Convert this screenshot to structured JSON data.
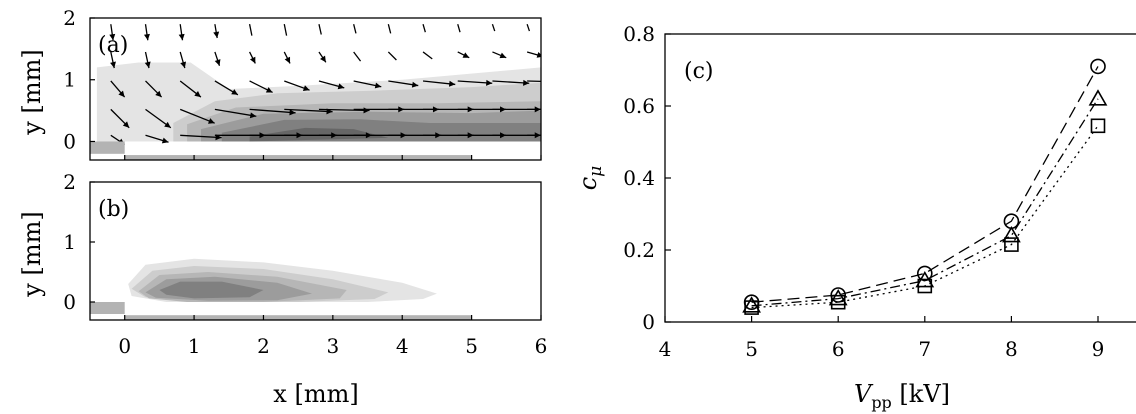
{
  "colors": {
    "contour_levels": [
      "#e4e4e4",
      "#cdcdcd",
      "#b6b6b6",
      "#9c9c9c",
      "#808080",
      "#666666"
    ],
    "electrode": "#b3b3b3",
    "background": "#ffffff"
  },
  "chart_data": [
    {
      "panel": "(a)",
      "type": "heatmap",
      "description_shape": "filled contour of induced flow with velocity vectors",
      "xlim": [
        -0.5,
        6
      ],
      "ylim": [
        -0.3,
        2
      ],
      "xticks": [
        "0",
        "1",
        "2",
        "3",
        "4",
        "5",
        "6"
      ],
      "yticks": [
        "0",
        "1",
        "2"
      ],
      "xticks_shown": false,
      "ylabel": "y [mm]",
      "electrodes": [
        {
          "x": [
            -0.5,
            0
          ],
          "y": [
            -0.2,
            0
          ]
        },
        {
          "x": [
            0,
            5
          ],
          "y": [
            -0.42,
            -0.22
          ]
        }
      ],
      "contours": [
        {
          "level": 1,
          "x": [
            -0.4,
            0.2,
            0.95,
            1.5,
            2.5,
            4,
            6,
            6,
            5,
            3,
            2,
            1.2,
            0.5,
            0,
            -0.4
          ],
          "y": [
            1.2,
            1.28,
            1.28,
            0.85,
            0.9,
            1.0,
            1.2,
            0,
            0,
            0,
            0,
            0,
            0,
            0,
            0
          ]
        },
        {
          "level": 2,
          "x": [
            0.7,
            1.3,
            2.2,
            3.5,
            5,
            6,
            6,
            0.7
          ],
          "y": [
            0.3,
            0.65,
            0.78,
            0.82,
            0.88,
            0.95,
            0,
            0
          ]
        },
        {
          "level": 3,
          "x": [
            0.9,
            1.6,
            3,
            4.5,
            6,
            6,
            0.9
          ],
          "y": [
            0.28,
            0.55,
            0.62,
            0.62,
            0.65,
            0,
            0
          ]
        },
        {
          "level": 4,
          "x": [
            1.1,
            2,
            3.5,
            5,
            6,
            6,
            1.1
          ],
          "y": [
            0.2,
            0.45,
            0.48,
            0.46,
            0.5,
            0,
            0
          ]
        },
        {
          "level": 5,
          "x": [
            1.4,
            2.3,
            3.4,
            4.4,
            6,
            6,
            1.4
          ],
          "y": [
            0.14,
            0.35,
            0.36,
            0.3,
            0.3,
            0,
            0
          ]
        },
        {
          "level": 6,
          "x": [
            1.8,
            2.6,
            3.3,
            3.8,
            1.8
          ],
          "y": [
            0.08,
            0.22,
            0.2,
            0.06,
            0
          ]
        }
      ],
      "vectors": [
        {
          "x": -0.2,
          "y": 1.9,
          "u": 0.02,
          "v": -0.14
        },
        {
          "x": 0.3,
          "y": 1.9,
          "u": 0.02,
          "v": -0.14
        },
        {
          "x": 0.8,
          "y": 1.9,
          "u": 0.02,
          "v": -0.14
        },
        {
          "x": 1.3,
          "y": 1.9,
          "u": 0.02,
          "v": -0.12
        },
        {
          "x": 1.8,
          "y": 1.9,
          "u": 0.02,
          "v": -0.1
        },
        {
          "x": 2.3,
          "y": 1.9,
          "u": 0.02,
          "v": -0.1
        },
        {
          "x": 2.8,
          "y": 1.9,
          "u": 0.02,
          "v": -0.09
        },
        {
          "x": 3.3,
          "y": 1.9,
          "u": 0.02,
          "v": -0.08
        },
        {
          "x": 3.8,
          "y": 1.9,
          "u": 0.02,
          "v": -0.08
        },
        {
          "x": 4.3,
          "y": 1.9,
          "u": 0.02,
          "v": -0.07
        },
        {
          "x": 4.8,
          "y": 1.9,
          "u": 0.02,
          "v": -0.07
        },
        {
          "x": 5.3,
          "y": 1.9,
          "u": 0.02,
          "v": -0.06
        },
        {
          "x": 5.8,
          "y": 1.9,
          "u": 0.02,
          "v": -0.06
        },
        {
          "x": -0.2,
          "y": 1.45,
          "u": 0.03,
          "v": -0.14
        },
        {
          "x": 0.3,
          "y": 1.45,
          "u": 0.03,
          "v": -0.14
        },
        {
          "x": 0.8,
          "y": 1.45,
          "u": 0.04,
          "v": -0.14
        },
        {
          "x": 1.3,
          "y": 1.45,
          "u": 0.04,
          "v": -0.12
        },
        {
          "x": 1.8,
          "y": 1.45,
          "u": 0.05,
          "v": -0.1
        },
        {
          "x": 2.3,
          "y": 1.45,
          "u": 0.05,
          "v": -0.1
        },
        {
          "x": 2.8,
          "y": 1.45,
          "u": 0.06,
          "v": -0.09
        },
        {
          "x": 3.3,
          "y": 1.45,
          "u": 0.06,
          "v": -0.08
        },
        {
          "x": 3.8,
          "y": 1.45,
          "u": 0.07,
          "v": -0.07
        },
        {
          "x": 4.3,
          "y": 1.45,
          "u": 0.08,
          "v": -0.06
        },
        {
          "x": 4.8,
          "y": 1.45,
          "u": 0.1,
          "v": -0.05
        },
        {
          "x": 5.3,
          "y": 1.45,
          "u": 0.12,
          "v": -0.05
        },
        {
          "x": 5.8,
          "y": 1.45,
          "u": 0.14,
          "v": -0.04
        },
        {
          "x": -0.2,
          "y": 0.98,
          "u": 0.12,
          "v": -0.14
        },
        {
          "x": 0.3,
          "y": 0.98,
          "u": 0.14,
          "v": -0.14
        },
        {
          "x": 0.8,
          "y": 0.98,
          "u": 0.18,
          "v": -0.14
        },
        {
          "x": 1.3,
          "y": 0.98,
          "u": 0.2,
          "v": -0.12
        },
        {
          "x": 1.8,
          "y": 0.98,
          "u": 0.2,
          "v": -0.1
        },
        {
          "x": 2.3,
          "y": 0.98,
          "u": 0.22,
          "v": -0.08
        },
        {
          "x": 2.8,
          "y": 0.98,
          "u": 0.22,
          "v": -0.06
        },
        {
          "x": 3.3,
          "y": 0.98,
          "u": 0.24,
          "v": -0.05
        },
        {
          "x": 3.8,
          "y": 0.98,
          "u": 0.26,
          "v": -0.04
        },
        {
          "x": 4.3,
          "y": 0.98,
          "u": 0.28,
          "v": -0.03
        },
        {
          "x": 4.8,
          "y": 0.98,
          "u": 0.3,
          "v": -0.02
        },
        {
          "x": 5.3,
          "y": 0.98,
          "u": 0.32,
          "v": -0.02
        },
        {
          "x": 5.8,
          "y": 0.98,
          "u": 0.34,
          "v": -0.01
        },
        {
          "x": -0.2,
          "y": 0.52,
          "u": 0.16,
          "v": -0.16
        },
        {
          "x": 0.3,
          "y": 0.52,
          "u": 0.22,
          "v": -0.16
        },
        {
          "x": 0.8,
          "y": 0.52,
          "u": 0.3,
          "v": -0.12
        },
        {
          "x": 1.3,
          "y": 0.52,
          "u": 0.36,
          "v": -0.06
        },
        {
          "x": 1.8,
          "y": 0.52,
          "u": 0.4,
          "v": -0.03
        },
        {
          "x": 2.3,
          "y": 0.52,
          "u": 0.42,
          "v": -0.02
        },
        {
          "x": 2.8,
          "y": 0.52,
          "u": 0.44,
          "v": -0.01
        },
        {
          "x": 3.3,
          "y": 0.52,
          "u": 0.44,
          "v": 0
        },
        {
          "x": 3.8,
          "y": 0.52,
          "u": 0.44,
          "v": 0
        },
        {
          "x": 4.3,
          "y": 0.52,
          "u": 0.44,
          "v": 0
        },
        {
          "x": 4.8,
          "y": 0.52,
          "u": 0.42,
          "v": 0
        },
        {
          "x": 5.3,
          "y": 0.52,
          "u": 0.42,
          "v": 0
        },
        {
          "x": 5.8,
          "y": 0.52,
          "u": 0.4,
          "v": 0
        },
        {
          "x": -0.2,
          "y": 0.1,
          "u": 0.12,
          "v": -0.08
        },
        {
          "x": 0.3,
          "y": 0.1,
          "u": 0.2,
          "v": -0.06
        },
        {
          "x": 0.8,
          "y": 0.1,
          "u": 0.36,
          "v": -0.02
        },
        {
          "x": 1.3,
          "y": 0.1,
          "u": 0.44,
          "v": 0
        },
        {
          "x": 1.8,
          "y": 0.1,
          "u": 0.46,
          "v": 0
        },
        {
          "x": 2.3,
          "y": 0.1,
          "u": 0.46,
          "v": 0
        },
        {
          "x": 2.8,
          "y": 0.1,
          "u": 0.46,
          "v": 0
        },
        {
          "x": 3.3,
          "y": 0.1,
          "u": 0.46,
          "v": 0
        },
        {
          "x": 3.8,
          "y": 0.1,
          "u": 0.46,
          "v": 0
        },
        {
          "x": 4.3,
          "y": 0.1,
          "u": 0.44,
          "v": 0
        },
        {
          "x": 4.8,
          "y": 0.1,
          "u": 0.42,
          "v": 0
        },
        {
          "x": 5.3,
          "y": 0.1,
          "u": 0.42,
          "v": 0
        },
        {
          "x": 5.8,
          "y": 0.1,
          "u": 0.4,
          "v": 0
        }
      ]
    },
    {
      "panel": "(b)",
      "type": "heatmap",
      "description_shape": "filled contour of plasma body force",
      "xlim": [
        -0.5,
        6
      ],
      "ylim": [
        -0.3,
        2
      ],
      "xticks": [
        "0",
        "1",
        "2",
        "3",
        "4",
        "5",
        "6"
      ],
      "yticks": [
        "0",
        "1",
        "2"
      ],
      "xlabel": "x [mm]",
      "ylabel": "y [mm]",
      "electrodes": [
        {
          "x": [
            -0.5,
            0
          ],
          "y": [
            -0.2,
            0
          ]
        },
        {
          "x": [
            0,
            5
          ],
          "y": [
            -0.42,
            -0.22
          ]
        }
      ],
      "contours": [
        {
          "level": 1,
          "x": [
            0.05,
            0.3,
            1,
            2,
            3,
            4,
            4.5,
            4.3,
            3.5,
            2.5,
            1.5,
            0.6,
            0.1
          ],
          "y": [
            0.3,
            0.62,
            0.72,
            0.66,
            0.52,
            0.32,
            0.14,
            0.05,
            0,
            0,
            0,
            0,
            0.1
          ]
        },
        {
          "level": 2,
          "x": [
            0.1,
            0.4,
            1,
            2,
            3,
            3.8,
            3.6,
            2.5,
            1.2,
            0.3
          ],
          "y": [
            0.22,
            0.52,
            0.6,
            0.55,
            0.38,
            0.16,
            0.05,
            0,
            0,
            0.08
          ]
        },
        {
          "level": 3,
          "x": [
            0.2,
            0.5,
            1.2,
            2.2,
            3.2,
            3.1,
            2,
            0.9,
            0.35
          ],
          "y": [
            0.18,
            0.45,
            0.5,
            0.42,
            0.2,
            0.06,
            0,
            0,
            0.06
          ]
        },
        {
          "level": 4,
          "x": [
            0.3,
            0.6,
            1.3,
            2.2,
            2.7,
            2.2,
            1.2,
            0.45
          ],
          "y": [
            0.16,
            0.38,
            0.42,
            0.32,
            0.14,
            0.03,
            0.02,
            0.07
          ]
        },
        {
          "level": 5,
          "x": [
            0.5,
            0.8,
            1.4,
            2,
            1.8,
            1,
            0.6
          ],
          "y": [
            0.2,
            0.34,
            0.34,
            0.2,
            0.08,
            0.06,
            0.12
          ]
        }
      ]
    },
    {
      "panel": "(c)",
      "type": "line",
      "xlabel": "V_pp [kV]",
      "ylabel": "c_μ",
      "xlim": [
        4,
        9.5
      ],
      "ylim": [
        0,
        0.8
      ],
      "xticks": [
        "4",
        "5",
        "6",
        "7",
        "8",
        "9"
      ],
      "yticks": [
        "0",
        "0.2",
        "0.4",
        "0.6",
        "0.8"
      ],
      "x": [
        5,
        6,
        7,
        8,
        9
      ],
      "series": [
        {
          "marker": "circle",
          "line": "dashed",
          "values": [
            0.055,
            0.075,
            0.135,
            0.28,
            0.71
          ]
        },
        {
          "marker": "triangle",
          "line": "dashdot",
          "values": [
            0.045,
            0.065,
            0.115,
            0.24,
            0.62
          ]
        },
        {
          "marker": "square",
          "line": "dotted",
          "values": [
            0.04,
            0.055,
            0.1,
            0.215,
            0.545
          ]
        }
      ]
    }
  ]
}
